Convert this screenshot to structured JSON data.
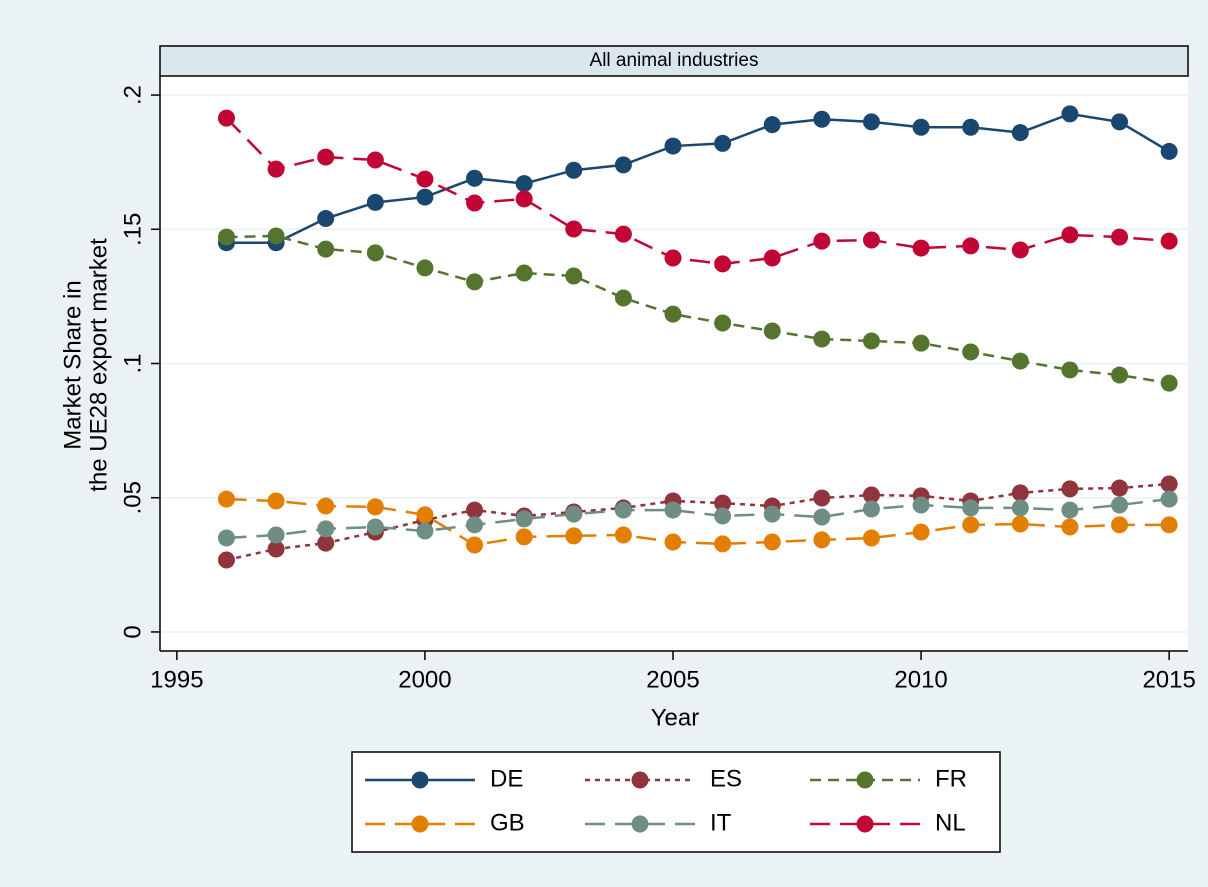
{
  "chart_data": {
    "type": "line",
    "panel_title": "All animal industries",
    "xlabel": "Year",
    "ylabel": [
      "Market Share in",
      "the UE28 export market"
    ],
    "x": [
      1996,
      1997,
      1998,
      1999,
      2000,
      2001,
      2002,
      2003,
      2004,
      2005,
      2006,
      2007,
      2008,
      2009,
      2010,
      2011,
      2012,
      2013,
      2014,
      2015
    ],
    "xlim": [
      1994.66,
      2015.38
    ],
    "xticks": [
      1995,
      2000,
      2005,
      2010,
      2015
    ],
    "ylim": [
      -0.0071,
      0.2071
    ],
    "yticks": [
      0,
      {
        "value": 0.05,
        "label": ".05"
      },
      {
        "value": 0.1,
        "label": ".1"
      },
      {
        "value": 0.15,
        "label": ".15"
      },
      {
        "value": 0.2,
        "label": ".2"
      }
    ],
    "grid": true,
    "legend": "bottom",
    "series": [
      {
        "name": "DE",
        "color": "#1a476f",
        "dash": "none",
        "values": [
          0.145,
          0.145,
          0.154,
          0.16,
          0.162,
          0.169,
          0.167,
          0.172,
          0.174,
          0.181,
          0.182,
          0.189,
          0.191,
          0.19,
          0.188,
          0.188,
          0.186,
          0.193,
          0.19,
          0.179
        ]
      },
      {
        "name": "ES",
        "color": "#90353b",
        "dash": "5,5",
        "values": [
          0.0268,
          0.0309,
          0.0331,
          0.0372,
          0.0417,
          0.0454,
          0.0432,
          0.0447,
          0.0462,
          0.0488,
          0.048,
          0.0469,
          0.0499,
          0.051,
          0.0507,
          0.0488,
          0.0518,
          0.0533,
          0.0536,
          0.0551
        ]
      },
      {
        "name": "FR",
        "color": "#55752f",
        "dash": "11,7",
        "values": [
          0.1471,
          0.1475,
          0.1426,
          0.1412,
          0.1356,
          0.1304,
          0.1337,
          0.1326,
          0.1244,
          0.1184,
          0.1151,
          0.1121,
          0.1091,
          0.1084,
          0.1076,
          0.1043,
          0.1009,
          0.0976,
          0.0957,
          0.0927
        ]
      },
      {
        "name": "GB",
        "color": "#e37e00",
        "dash": "20,10",
        "values": [
          0.0495,
          0.0488,
          0.0469,
          0.0466,
          0.0436,
          0.0324,
          0.0354,
          0.0358,
          0.0361,
          0.0335,
          0.0328,
          0.0335,
          0.0343,
          0.035,
          0.0372,
          0.0399,
          0.0402,
          0.0391,
          0.0399,
          0.0399
        ]
      },
      {
        "name": "IT",
        "color": "#6e8e84",
        "dash": "20,10",
        "values": [
          0.035,
          0.0361,
          0.0384,
          0.0391,
          0.0376,
          0.0399,
          0.0421,
          0.0439,
          0.0454,
          0.0454,
          0.0432,
          0.0439,
          0.0428,
          0.0458,
          0.0473,
          0.0462,
          0.0462,
          0.0454,
          0.0473,
          0.0495
        ]
      },
      {
        "name": "NL",
        "color": "#c10534",
        "dash": "20,10",
        "values": [
          0.1914,
          0.1724,
          0.1769,
          0.1758,
          0.1687,
          0.1598,
          0.1613,
          0.1501,
          0.1482,
          0.1393,
          0.1371,
          0.1393,
          0.1456,
          0.146,
          0.143,
          0.1438,
          0.1423,
          0.1479,
          0.1471,
          0.1456
        ]
      }
    ]
  }
}
